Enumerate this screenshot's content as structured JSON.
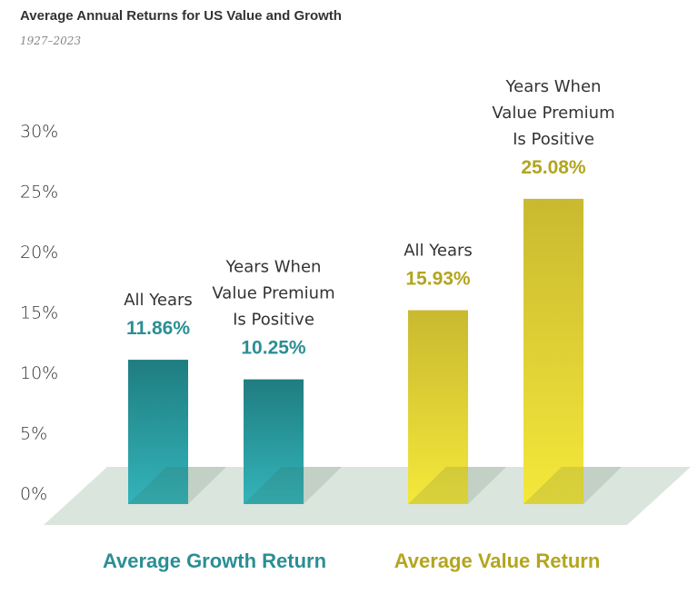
{
  "title": "Average Annual Returns for US Value and Growth",
  "subtitle": "1927–2023",
  "chart_data": {
    "type": "bar",
    "title": "Average Annual Returns for US Value and Growth",
    "subtitle": "1927–2023",
    "ylim": [
      0,
      30
    ],
    "yticks": [
      "0%",
      "5%",
      "10%",
      "15%",
      "20%",
      "25%",
      "30%"
    ],
    "groups": [
      {
        "name": "Average Growth Return",
        "color": "#2a8f94",
        "bars": [
          {
            "label": [
              "All Years"
            ],
            "value": 11.86,
            "value_label": "11.86%"
          },
          {
            "label": [
              "Years When",
              "Value Premium",
              "Is Positive"
            ],
            "value": 10.25,
            "value_label": "10.25%"
          }
        ]
      },
      {
        "name": "Average Value Return",
        "color": "#b3a51f",
        "bars": [
          {
            "label": [
              "All Years"
            ],
            "value": 15.93,
            "value_label": "15.93%"
          },
          {
            "label": [
              "Years When",
              "Value Premium",
              "Is Positive"
            ],
            "value": 25.08,
            "value_label": "25.08%"
          }
        ]
      }
    ]
  }
}
